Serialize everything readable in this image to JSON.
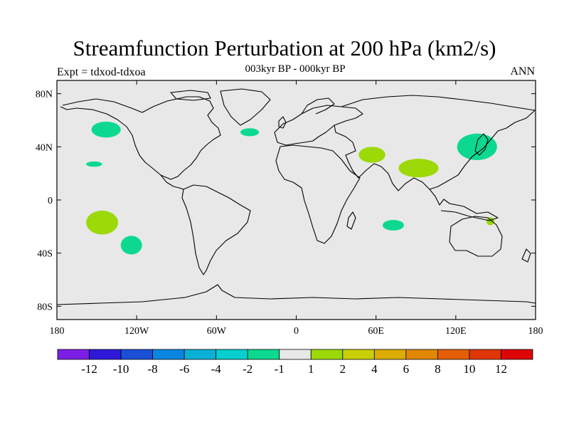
{
  "title": "Streamfunction Perturbation at 200 hPa (km2/s)",
  "subtitle": "003kyr BP - 000kyr BP",
  "left_label": "Expt = tdxod-tdxoa",
  "right_label": "ANN",
  "map": {
    "lon_range": [
      -180,
      180
    ],
    "lat_range": [
      -90,
      90
    ],
    "ocean_fill": "#e8e8e8",
    "outline_color": "#000000",
    "lat_ticks": [
      {
        "value": 80,
        "label": "80N"
      },
      {
        "value": 40,
        "label": "40N"
      },
      {
        "value": 0,
        "label": "0"
      },
      {
        "value": -40,
        "label": "40S"
      },
      {
        "value": -80,
        "label": "80S"
      }
    ],
    "lon_ticks": [
      {
        "value": -180,
        "label": "180"
      },
      {
        "value": -120,
        "label": "120W"
      },
      {
        "value": -60,
        "label": "60W"
      },
      {
        "value": 0,
        "label": "0"
      },
      {
        "value": 60,
        "label": "60E"
      },
      {
        "value": 120,
        "label": "120E"
      },
      {
        "value": 180,
        "label": "180"
      }
    ],
    "anomalies": [
      {
        "lon": -143,
        "lat": 53,
        "rlon": 11,
        "rlat": 6,
        "level": "-2"
      },
      {
        "lon": -35,
        "lat": 51,
        "rlon": 7,
        "rlat": 3,
        "level": "-2"
      },
      {
        "lon": -152,
        "lat": 27,
        "rlon": 6,
        "rlat": 2,
        "level": "-2"
      },
      {
        "lon": -146,
        "lat": -17,
        "rlon": 12,
        "rlat": 9,
        "level": "1"
      },
      {
        "lon": -124,
        "lat": -34,
        "rlon": 8,
        "rlat": 7,
        "level": "-2"
      },
      {
        "lon": 57,
        "lat": 34,
        "rlon": 10,
        "rlat": 6,
        "level": "1"
      },
      {
        "lon": 92,
        "lat": 24,
        "rlon": 15,
        "rlat": 7,
        "level": "1"
      },
      {
        "lon": 136,
        "lat": 40,
        "rlon": 15,
        "rlat": 10,
        "level": "-2"
      },
      {
        "lon": 136,
        "lat": 37,
        "rlon": 7,
        "rlat": 5,
        "level": "-1"
      },
      {
        "lon": 73,
        "lat": -19,
        "rlon": 8,
        "rlat": 4,
        "level": "-2"
      },
      {
        "lon": 146,
        "lat": -16,
        "rlon": 3,
        "rlat": 3,
        "level": "1"
      }
    ]
  },
  "colorbar": {
    "colors": [
      "#7d1ee6",
      "#2e19d9",
      "#1a4fd6",
      "#0a86e0",
      "#0cb0d6",
      "#08cfcf",
      "#0cd98f",
      "#e8e8e8",
      "#9bd907",
      "#c9cf04",
      "#dcac04",
      "#e08704",
      "#e35e04",
      "#e03506",
      "#dd0506"
    ],
    "labels": [
      "-12",
      "-10",
      "-8",
      "-6",
      "-4",
      "-2",
      "-1",
      "1",
      "2",
      "4",
      "6",
      "8",
      "10",
      "12"
    ],
    "level_colors": {
      "-2": "#0cd98f",
      "-1": "#0cd98f",
      "1": "#9bd907"
    }
  }
}
